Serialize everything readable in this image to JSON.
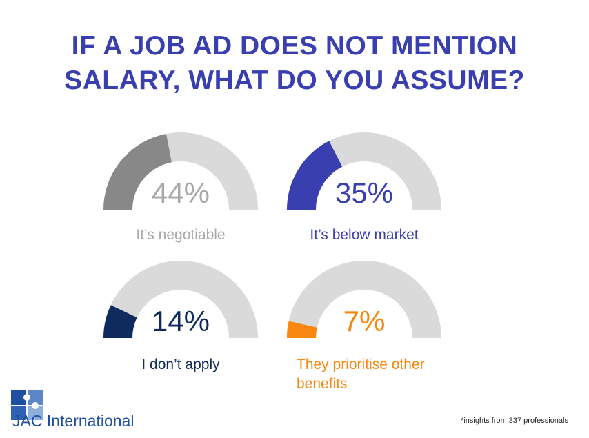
{
  "title_lines": [
    "IF A JOB AD DOES NOT MENTION",
    "SALARY, WHAT DO YOU ASSUME?"
  ],
  "colors": {
    "title": "#3a3fb0",
    "track": "#dadada",
    "negotiable": "#888888",
    "below_market": "#3a3fb0",
    "dont_apply": "#0f2a5c",
    "other_benefits": "#f7870f",
    "logo_blue": "#1f4fa0"
  },
  "chart_data": {
    "type": "gauge",
    "items": [
      {
        "label": "It’s negotiable",
        "value": 44,
        "display": "44%",
        "color_key": "negotiable"
      },
      {
        "label": "It’s below market",
        "value": 35,
        "display": "35%",
        "color_key": "below_market"
      },
      {
        "label": "I don’t apply",
        "value": 14,
        "display": "14%",
        "color_key": "dont_apply"
      },
      {
        "label_lines": [
          "They prioritise other",
          "benefits"
        ],
        "value": 7,
        "display": "7%",
        "color_key": "other_benefits"
      }
    ]
  },
  "logo": {
    "jac": "JAC",
    "rest": " International"
  },
  "footnote": "*insights from 337 professionals"
}
